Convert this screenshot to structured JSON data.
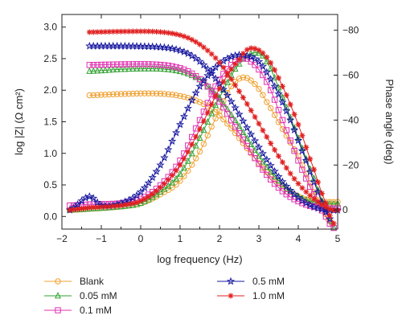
{
  "chart_data": {
    "type": "line",
    "xlabel": "log frequency (Hz)",
    "ylabel_left": "log |Z| (Ω cm²)",
    "ylabel_right": "Phase angle (deg)",
    "xlim": [
      -2,
      5
    ],
    "ylim_left": [
      -0.2,
      3.2
    ],
    "ylim_right": [
      8.5,
      -87
    ],
    "x_ticks": [
      -2,
      -1,
      0,
      1,
      2,
      3,
      4,
      5
    ],
    "y_left_ticks": [
      0.0,
      0.5,
      1.0,
      1.5,
      2.0,
      2.5,
      3.0
    ],
    "y_left_tick_labels": [
      "0.0",
      "0.5",
      "1.0",
      "1.5",
      "2.0",
      "2.5",
      "3.0"
    ],
    "y_right_ticks": [
      0,
      -20,
      -40,
      -60,
      -80
    ],
    "y_right_tick_labels": [
      "0",
      "−20",
      "−40",
      "−60",
      "−80"
    ],
    "grid": false,
    "legend_position": "bottom",
    "series": [
      {
        "name": "Blank",
        "color": "#f0a030",
        "marker": "circle",
        "impedance": [
          [
            -1.3,
            1.92
          ],
          [
            -0.5,
            1.94
          ],
          [
            0.3,
            1.95
          ],
          [
            0.8,
            1.93
          ],
          [
            1.2,
            1.88
          ],
          [
            1.6,
            1.78
          ],
          [
            2.0,
            1.6
          ],
          [
            2.4,
            1.32
          ],
          [
            2.8,
            1.0
          ],
          [
            3.2,
            0.7
          ],
          [
            3.6,
            0.48
          ],
          [
            4.0,
            0.32
          ],
          [
            4.4,
            0.24
          ],
          [
            4.8,
            0.23
          ],
          [
            5.0,
            0.23
          ]
        ],
        "phase": [
          [
            -1.8,
            0
          ],
          [
            -1.3,
            -0.5
          ],
          [
            -0.5,
            -1.5
          ],
          [
            0.0,
            -3
          ],
          [
            0.5,
            -7
          ],
          [
            1.0,
            -13
          ],
          [
            1.5,
            -26
          ],
          [
            2.0,
            -44
          ],
          [
            2.3,
            -55
          ],
          [
            2.6,
            -59
          ],
          [
            2.9,
            -56
          ],
          [
            3.2,
            -48
          ],
          [
            3.6,
            -36
          ],
          [
            4.0,
            -24
          ],
          [
            4.3,
            -12
          ],
          [
            4.6,
            -1
          ],
          [
            4.85,
            6
          ]
        ]
      },
      {
        "name": "0.05 mM",
        "color": "#30a030",
        "marker": "triangle",
        "impedance": [
          [
            -1.3,
            2.3
          ],
          [
            -0.5,
            2.33
          ],
          [
            0.3,
            2.34
          ],
          [
            0.8,
            2.32
          ],
          [
            1.2,
            2.26
          ],
          [
            1.6,
            2.12
          ],
          [
            2.0,
            1.86
          ],
          [
            2.4,
            1.52
          ],
          [
            2.8,
            1.14
          ],
          [
            3.2,
            0.78
          ],
          [
            3.6,
            0.5
          ],
          [
            4.0,
            0.32
          ],
          [
            4.4,
            0.22
          ],
          [
            4.8,
            0.2
          ],
          [
            5.0,
            0.2
          ]
        ],
        "phase": [
          [
            -1.8,
            0
          ],
          [
            -1.3,
            -0.5
          ],
          [
            -0.5,
            -1.5
          ],
          [
            0.0,
            -3
          ],
          [
            0.5,
            -8
          ],
          [
            1.0,
            -16
          ],
          [
            1.5,
            -32
          ],
          [
            2.0,
            -50
          ],
          [
            2.5,
            -65
          ],
          [
            2.9,
            -70
          ],
          [
            3.2,
            -66
          ],
          [
            3.6,
            -50
          ],
          [
            4.0,
            -32
          ],
          [
            4.4,
            -14
          ],
          [
            4.7,
            0
          ],
          [
            4.9,
            8
          ]
        ]
      },
      {
        "name": "0.1 mM",
        "color": "#e030b0",
        "marker": "square",
        "impedance": [
          [
            -1.3,
            2.4
          ],
          [
            -0.5,
            2.41
          ],
          [
            0.3,
            2.41
          ],
          [
            0.8,
            2.38
          ],
          [
            1.2,
            2.3
          ],
          [
            1.6,
            2.12
          ],
          [
            2.0,
            1.82
          ],
          [
            2.4,
            1.42
          ],
          [
            2.8,
            1.02
          ],
          [
            3.2,
            0.66
          ],
          [
            3.6,
            0.4
          ],
          [
            4.0,
            0.24
          ],
          [
            4.4,
            0.15
          ],
          [
            4.8,
            0.13
          ],
          [
            5.0,
            0.13
          ]
        ],
        "phase": [
          [
            -1.8,
            -2
          ],
          [
            -1.3,
            -2.5
          ],
          [
            -0.5,
            -3
          ],
          [
            0.0,
            -5
          ],
          [
            0.5,
            -11
          ],
          [
            1.0,
            -22
          ],
          [
            1.5,
            -40
          ],
          [
            2.0,
            -58
          ],
          [
            2.5,
            -67
          ],
          [
            2.8,
            -66
          ],
          [
            3.2,
            -57
          ],
          [
            3.6,
            -40
          ],
          [
            4.0,
            -22
          ],
          [
            4.4,
            -7
          ],
          [
            4.7,
            3
          ],
          [
            4.9,
            8
          ]
        ]
      },
      {
        "name": "0.5 mM",
        "color": "#1a1aa0",
        "marker": "star",
        "impedance": [
          [
            -1.3,
            2.7
          ],
          [
            -0.5,
            2.7
          ],
          [
            0.3,
            2.69
          ],
          [
            0.8,
            2.66
          ],
          [
            1.2,
            2.58
          ],
          [
            1.6,
            2.4
          ],
          [
            2.0,
            2.1
          ],
          [
            2.4,
            1.72
          ],
          [
            2.8,
            1.3
          ],
          [
            3.2,
            0.9
          ],
          [
            3.6,
            0.55
          ],
          [
            4.0,
            0.3
          ],
          [
            4.4,
            0.15
          ],
          [
            4.8,
            0.1
          ],
          [
            5.0,
            0.1
          ]
        ],
        "phase": [
          [
            -1.8,
            0
          ],
          [
            -1.3,
            -6
          ],
          [
            -1.0,
            -2
          ],
          [
            -0.5,
            -3
          ],
          [
            0.0,
            -8
          ],
          [
            0.5,
            -20
          ],
          [
            1.0,
            -38
          ],
          [
            1.5,
            -55
          ],
          [
            2.0,
            -65
          ],
          [
            2.5,
            -69
          ],
          [
            3.0,
            -66
          ],
          [
            3.4,
            -55
          ],
          [
            3.8,
            -40
          ],
          [
            4.2,
            -22
          ],
          [
            4.5,
            -8
          ],
          [
            4.8,
            4
          ]
        ]
      },
      {
        "name": "1.0 mM",
        "color": "#e02020",
        "marker": "asterisk",
        "impedance": [
          [
            -1.3,
            2.92
          ],
          [
            -0.5,
            2.93
          ],
          [
            0.3,
            2.93
          ],
          [
            0.8,
            2.9
          ],
          [
            1.2,
            2.83
          ],
          [
            1.6,
            2.68
          ],
          [
            2.0,
            2.44
          ],
          [
            2.4,
            2.08
          ],
          [
            2.8,
            1.68
          ],
          [
            3.2,
            1.26
          ],
          [
            3.6,
            0.86
          ],
          [
            4.0,
            0.52
          ],
          [
            4.4,
            0.28
          ],
          [
            4.8,
            0.12
          ],
          [
            5.0,
            0.1
          ]
        ],
        "phase": [
          [
            -1.8,
            0
          ],
          [
            -1.3,
            -1
          ],
          [
            -0.5,
            -2
          ],
          [
            0.0,
            -4
          ],
          [
            0.5,
            -10
          ],
          [
            1.0,
            -20
          ],
          [
            1.5,
            -36
          ],
          [
            2.0,
            -54
          ],
          [
            2.5,
            -67
          ],
          [
            2.8,
            -72
          ],
          [
            3.2,
            -68
          ],
          [
            3.6,
            -55
          ],
          [
            4.0,
            -38
          ],
          [
            4.4,
            -18
          ],
          [
            4.7,
            -3
          ],
          [
            4.9,
            6
          ]
        ]
      }
    ]
  }
}
